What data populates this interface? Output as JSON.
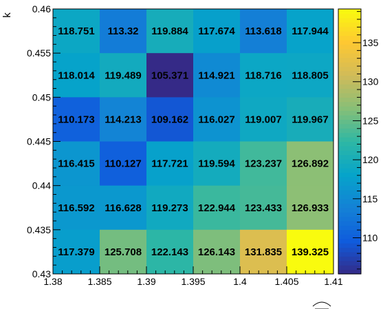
{
  "chart_data": {
    "type": "heatmap",
    "title": "",
    "xlabel": "",
    "ylabel": "k",
    "x_edges": [
      1.38,
      1.385,
      1.39,
      1.395,
      1.4,
      1.405,
      1.41
    ],
    "y_edges": [
      0.43,
      0.435,
      0.44,
      0.445,
      0.45,
      0.455,
      0.46
    ],
    "xlim": [
      1.38,
      1.41
    ],
    "ylim": [
      0.43,
      0.46
    ],
    "x_tick_labels": [
      "1.38",
      "1.385",
      "1.39",
      "1.395",
      "1.4",
      "1.405",
      "1.41"
    ],
    "y_tick_labels": [
      "0.43",
      "0.435",
      "0.44",
      "0.445",
      "0.45",
      "0.455",
      "0.46"
    ],
    "values_rows_top_to_bottom": [
      [
        118.751,
        113.32,
        119.884,
        117.674,
        113.618,
        117.944
      ],
      [
        118.014,
        119.489,
        105.371,
        114.921,
        118.716,
        118.805
      ],
      [
        110.173,
        114.213,
        109.162,
        116.027,
        119.007,
        119.967
      ],
      [
        116.415,
        110.127,
        117.721,
        119.594,
        123.237,
        126.892
      ],
      [
        116.592,
        116.628,
        119.273,
        122.944,
        123.433,
        126.933
      ],
      [
        117.379,
        125.708,
        122.143,
        126.143,
        131.835,
        139.325
      ]
    ],
    "labels_rows_top_to_bottom": [
      [
        "118.751",
        "113.32",
        "119.884",
        "117.674",
        "113.618",
        "117.944"
      ],
      [
        "118.014",
        "119.489",
        "105.371",
        "114.921",
        "118.716",
        "118.805"
      ],
      [
        "110.173",
        "114.213",
        "109.162",
        "116.027",
        "119.007",
        "119.967"
      ],
      [
        "116.415",
        "110.127",
        "117.721",
        "119.594",
        "123.237",
        "126.892"
      ],
      [
        "116.592",
        "116.628",
        "119.273",
        "122.944",
        "123.433",
        "126.933"
      ],
      [
        "117.379",
        "125.708",
        "122.143",
        "126.143",
        "131.835",
        "139.325"
      ]
    ],
    "colorbar": {
      "min": 105.371,
      "max": 139.325,
      "tick_values": [
        110,
        115,
        120,
        125,
        130,
        135
      ],
      "tick_labels": [
        "110",
        "115",
        "120",
        "125",
        "130",
        "135"
      ]
    },
    "palette": [
      "#352a87",
      "#0f5cdd",
      "#1481d6",
      "#06a4ca",
      "#2eb7a4",
      "#87bf77",
      "#d1bb59",
      "#fec832",
      "#f9fb0e"
    ]
  }
}
